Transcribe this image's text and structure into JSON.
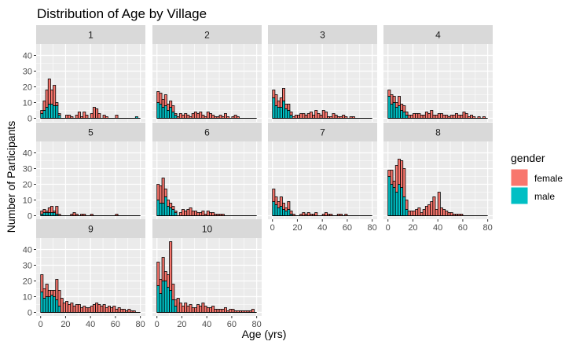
{
  "chart_data": {
    "type": "bar",
    "title": "Distribution of Age by Village",
    "xlabel": "Age (yrs)",
    "ylabel": "Number of Participants",
    "xlim": [
      0,
      80
    ],
    "ylim": [
      0,
      45
    ],
    "x_ticks": [
      0,
      20,
      40,
      60,
      80
    ],
    "y_ticks": [
      0,
      10,
      20,
      30,
      40
    ],
    "bin_width_years": 2,
    "stacked": true,
    "grid": true,
    "legend": {
      "title": "gender",
      "position": "right",
      "entries": [
        {
          "label": "female",
          "color": "#F8766D"
        },
        {
          "label": "male",
          "color": "#00BFC4"
        }
      ]
    },
    "colors": {
      "female": "#F8766D",
      "male": "#00BFC4",
      "panel_bg": "#EBEBEB",
      "strip_bg": "#D9D9D9",
      "bar_outline": "#000000"
    },
    "bins": [
      0,
      2,
      4,
      6,
      8,
      10,
      12,
      14,
      16,
      18,
      20,
      22,
      24,
      26,
      28,
      30,
      32,
      34,
      36,
      38,
      40,
      42,
      44,
      46,
      48,
      50,
      52,
      54,
      56,
      58,
      60,
      62,
      64,
      66,
      68,
      70,
      72,
      74,
      76,
      78
    ],
    "panels": [
      {
        "label": "1",
        "male": [
          3,
          5,
          7,
          9,
          9,
          8,
          8,
          2,
          0,
          0,
          0,
          0,
          0,
          0,
          0,
          0,
          0,
          0,
          0,
          0,
          0,
          0,
          0,
          0,
          0,
          0,
          0,
          0,
          0,
          0,
          0,
          0,
          0,
          0,
          0,
          0,
          0,
          0,
          1,
          0
        ],
        "female": [
          2,
          6,
          11,
          16,
          9,
          13,
          2,
          1,
          0,
          0,
          2,
          2,
          1,
          0,
          2,
          4,
          1,
          4,
          2,
          0,
          3,
          7,
          6,
          3,
          0,
          2,
          1,
          0,
          0,
          0,
          2,
          0,
          0,
          0,
          0,
          0,
          0,
          0,
          0,
          0
        ]
      },
      {
        "label": "2",
        "male": [
          10,
          9,
          7,
          8,
          5,
          7,
          4,
          2,
          0,
          0,
          0,
          0,
          0,
          0,
          0,
          0,
          0,
          0,
          0,
          0,
          0,
          0,
          0,
          0,
          0,
          0,
          0,
          0,
          0,
          0,
          0,
          0,
          0,
          0,
          0,
          0,
          0,
          0,
          0,
          0
        ],
        "female": [
          7,
          7,
          5,
          7,
          4,
          4,
          4,
          1,
          1,
          3,
          2,
          3,
          2,
          1,
          3,
          4,
          3,
          4,
          2,
          1,
          4,
          3,
          2,
          1,
          1,
          2,
          1,
          3,
          1,
          0,
          1,
          2,
          1,
          0,
          0,
          0,
          0,
          0,
          0,
          0
        ]
      },
      {
        "label": "3",
        "male": [
          13,
          8,
          7,
          7,
          11,
          6,
          5,
          2,
          0,
          0,
          0,
          0,
          0,
          0,
          0,
          0,
          0,
          0,
          0,
          0,
          0,
          0,
          0,
          0,
          0,
          0,
          0,
          0,
          0,
          0,
          0,
          0,
          0,
          0,
          0,
          0,
          0,
          0,
          0,
          0
        ],
        "female": [
          5,
          7,
          4,
          6,
          8,
          3,
          4,
          2,
          1,
          2,
          2,
          3,
          3,
          2,
          3,
          4,
          2,
          5,
          3,
          2,
          5,
          4,
          1,
          1,
          3,
          2,
          1,
          1,
          2,
          1,
          0,
          1,
          1,
          0,
          0,
          0,
          0,
          0,
          0,
          0
        ]
      },
      {
        "label": "4",
        "male": [
          14,
          9,
          10,
          7,
          8,
          5,
          4,
          2,
          0,
          0,
          0,
          0,
          0,
          0,
          0,
          0,
          0,
          0,
          0,
          0,
          0,
          0,
          0,
          0,
          0,
          0,
          0,
          0,
          0,
          0,
          0,
          0,
          0,
          0,
          0,
          0,
          0,
          0,
          0,
          0
        ],
        "female": [
          4,
          6,
          4,
          3,
          6,
          4,
          4,
          2,
          2,
          2,
          3,
          3,
          3,
          2,
          2,
          4,
          3,
          5,
          2,
          2,
          3,
          3,
          2,
          2,
          1,
          2,
          2,
          3,
          2,
          2,
          4,
          3,
          1,
          2,
          1,
          0,
          1,
          0,
          1,
          0
        ]
      },
      {
        "label": "5",
        "male": [
          1,
          2,
          2,
          2,
          2,
          2,
          1,
          0,
          0,
          0,
          0,
          0,
          0,
          0,
          0,
          0,
          0,
          0,
          0,
          0,
          0,
          0,
          0,
          0,
          0,
          0,
          0,
          0,
          0,
          0,
          0,
          0,
          0,
          0,
          0,
          0,
          0,
          0,
          0,
          0
        ],
        "female": [
          2,
          2,
          1,
          3,
          4,
          1,
          5,
          1,
          0,
          0,
          0,
          0,
          1,
          2,
          1,
          0,
          1,
          1,
          0,
          0,
          1,
          0,
          0,
          0,
          0,
          0,
          0,
          0,
          0,
          0,
          1,
          0,
          0,
          0,
          0,
          0,
          0,
          0,
          0,
          0
        ]
      },
      {
        "label": "6",
        "male": [
          10,
          8,
          8,
          12,
          6,
          5,
          4,
          2,
          0,
          0,
          0,
          0,
          0,
          0,
          0,
          0,
          0,
          0,
          0,
          0,
          0,
          0,
          0,
          0,
          0,
          0,
          0,
          0,
          0,
          0,
          0,
          0,
          0,
          0,
          0,
          0,
          0,
          0,
          0,
          0
        ],
        "female": [
          10,
          11,
          16,
          5,
          4,
          3,
          2,
          1,
          0,
          2,
          4,
          3,
          4,
          5,
          3,
          3,
          2,
          2,
          3,
          1,
          3,
          2,
          2,
          1,
          1,
          1,
          1,
          0,
          0,
          0,
          0,
          0,
          0,
          0,
          0,
          0,
          0,
          0,
          0,
          0
        ]
      },
      {
        "label": "7",
        "male": [
          9,
          7,
          5,
          6,
          4,
          3,
          4,
          1,
          0,
          0,
          0,
          0,
          0,
          0,
          0,
          0,
          0,
          0,
          0,
          0,
          0,
          0,
          0,
          0,
          0,
          0,
          0,
          0,
          0,
          0,
          0,
          0,
          0,
          0,
          0,
          0,
          0,
          0,
          0,
          0
        ],
        "female": [
          8,
          5,
          4,
          6,
          4,
          2,
          5,
          2,
          1,
          0,
          0,
          1,
          2,
          1,
          2,
          1,
          1,
          2,
          0,
          0,
          1,
          2,
          1,
          1,
          0,
          0,
          1,
          1,
          0,
          1,
          0,
          0,
          0,
          0,
          0,
          0,
          0,
          0,
          0,
          0
        ]
      },
      {
        "label": "8",
        "male": [
          25,
          20,
          18,
          15,
          20,
          18,
          12,
          4,
          0,
          0,
          0,
          0,
          0,
          0,
          0,
          0,
          0,
          0,
          0,
          0,
          0,
          0,
          0,
          0,
          0,
          0,
          0,
          0,
          0,
          0,
          0,
          0,
          0,
          0,
          0,
          0,
          0,
          0,
          0,
          0
        ],
        "female": [
          4,
          9,
          4,
          17,
          16,
          17,
          18,
          6,
          3,
          3,
          3,
          4,
          5,
          2,
          4,
          6,
          7,
          9,
          12,
          4,
          15,
          5,
          4,
          3,
          2,
          2,
          1,
          1,
          1,
          1,
          0,
          0,
          0,
          0,
          0,
          0,
          0,
          0,
          0,
          0
        ]
      },
      {
        "label": "9",
        "male": [
          13,
          9,
          10,
          10,
          11,
          10,
          8,
          4,
          0,
          0,
          0,
          0,
          0,
          0,
          0,
          0,
          0,
          0,
          0,
          0,
          0,
          0,
          0,
          0,
          0,
          0,
          0,
          0,
          0,
          0,
          0,
          0,
          0,
          0,
          0,
          0,
          0,
          0,
          0,
          0
        ],
        "female": [
          11,
          6,
          8,
          4,
          3,
          4,
          13,
          10,
          9,
          6,
          7,
          5,
          6,
          4,
          5,
          5,
          3,
          4,
          3,
          3,
          4,
          5,
          6,
          5,
          4,
          5,
          3,
          4,
          3,
          4,
          2,
          3,
          2,
          2,
          1,
          2,
          1,
          1,
          0,
          0
        ]
      },
      {
        "label": "10",
        "male": [
          17,
          12,
          20,
          20,
          16,
          14,
          8,
          4,
          0,
          0,
          0,
          0,
          0,
          0,
          0,
          0,
          0,
          0,
          0,
          0,
          0,
          0,
          0,
          0,
          0,
          0,
          0,
          0,
          0,
          0,
          0,
          0,
          0,
          0,
          0,
          0,
          0,
          0,
          0,
          0
        ],
        "female": [
          15,
          9,
          15,
          6,
          8,
          31,
          10,
          4,
          9,
          6,
          4,
          6,
          4,
          5,
          3,
          3,
          5,
          4,
          6,
          4,
          3,
          3,
          4,
          2,
          2,
          2,
          2,
          3,
          1,
          2,
          2,
          1,
          1,
          1,
          1,
          1,
          1,
          1,
          2,
          0
        ]
      }
    ]
  }
}
